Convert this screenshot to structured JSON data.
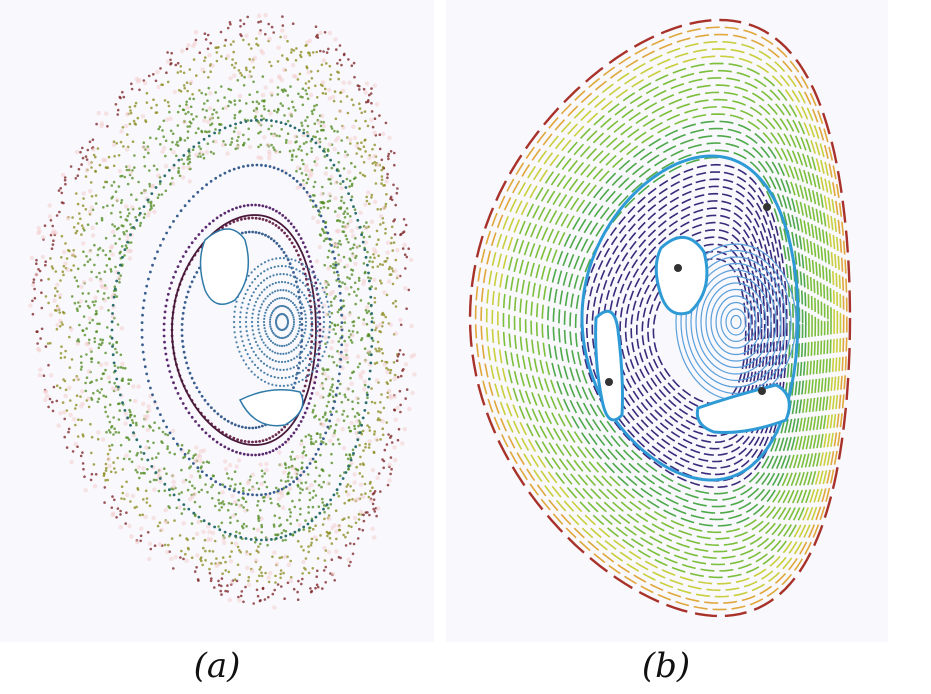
{
  "captions": {
    "a": "(a)",
    "b": "(b)"
  },
  "panel_a": {
    "description_kind": "poincare-section-scatter",
    "palette": [
      "#7a1f1f",
      "#c23b22",
      "#8a8a1a",
      "#4f8a1c",
      "#2c6e6e",
      "#3a5f8f",
      "#5b2a6e"
    ]
  },
  "panel_b": {
    "description_kind": "poincare-section-contours",
    "palette_outer_to_inner": [
      "#a8322a",
      "#e0a73a",
      "#c9cf3c",
      "#7cbf3a",
      "#4fa94a",
      "#2f9bd6",
      "#3a2a7a",
      "#5b9fd9"
    ],
    "fixed_point_color": "#333333"
  }
}
